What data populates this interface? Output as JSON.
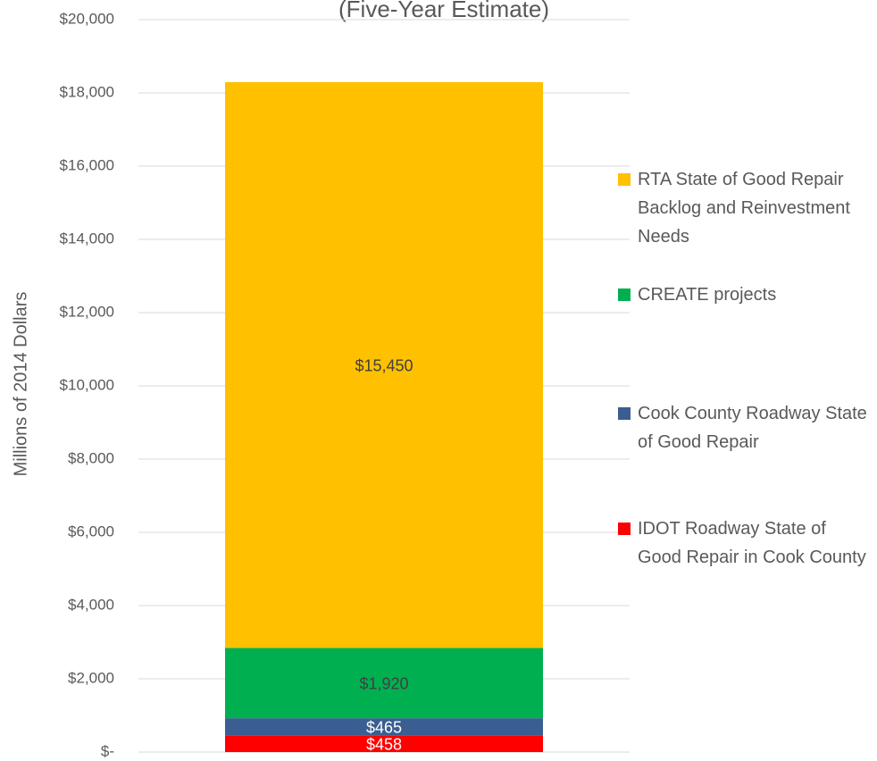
{
  "chart_data": {
    "type": "stacked_bar",
    "title": "(Five-Year Estimate)",
    "y_label": "Millions of 2014 Dollars",
    "categories": [
      null
    ],
    "series": [
      {
        "name": "IDOT Roadway State of Good Repair in Cook County",
        "color": "#ff0000",
        "values": [
          458
        ],
        "value_labels": [
          "$458"
        ]
      },
      {
        "name": "Cook County Roadway State of Good Repair",
        "color": "#3a5e91",
        "values": [
          465
        ],
        "value_labels": [
          "$465"
        ]
      },
      {
        "name": "CREATE projects",
        "color": "#00b050",
        "values": [
          1920
        ],
        "value_labels": [
          "$1,920"
        ]
      },
      {
        "name": "RTA State of Good Repair Backlog and Reinvestment Needs",
        "color": "#ffc000",
        "values": [
          15450
        ],
        "value_labels": [
          "$15,450"
        ]
      }
    ],
    "ylim": [
      0,
      20000
    ],
    "yticks": [
      {
        "value": 0,
        "label": "$-"
      },
      {
        "value": 2000,
        "label": "$2,000"
      },
      {
        "value": 4000,
        "label": "$4,000"
      },
      {
        "value": 6000,
        "label": "$6,000"
      },
      {
        "value": 8000,
        "label": "$8,000"
      },
      {
        "value": 10000,
        "label": "$10,000"
      },
      {
        "value": 12000,
        "label": "$12,000"
      },
      {
        "value": 14000,
        "label": "$14,000"
      },
      {
        "value": 16000,
        "label": "$16,000"
      },
      {
        "value": 18000,
        "label": "$18,000"
      },
      {
        "value": 20000,
        "label": "$20,000"
      }
    ],
    "grid": true,
    "legend": "right"
  }
}
